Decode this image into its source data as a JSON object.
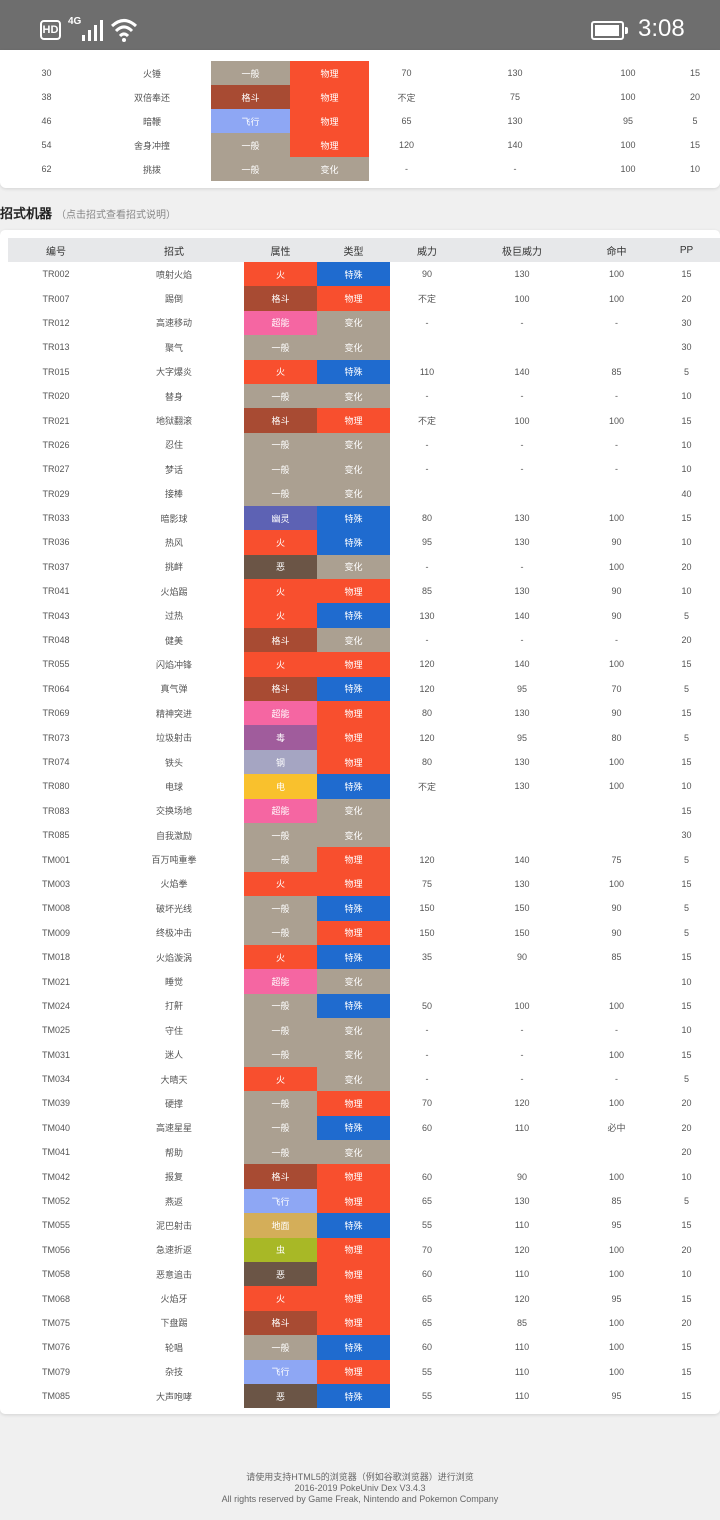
{
  "status_bar": {
    "network_hd": "HD",
    "network_type": "4G",
    "time": "3:08"
  },
  "type_colors": {
    "一般": "#aba091",
    "格斗": "#a84b33",
    "飞行": "#8ea7f4",
    "火": "#f84f2e",
    "超能": "#f566a2",
    "幽灵": "#5d62b4",
    "恶": "#6b5546",
    "毒": "#a05c9c",
    "钢": "#a5a5c2",
    "电": "#f9c12d",
    "地面": "#d4ae59",
    "虫": "#a8b826",
    "物理": "#f84f2e",
    "特殊": "#1f6bcf",
    "变化": "#aba091"
  },
  "level_moves": [
    [
      "30",
      "火锤",
      "一般",
      "物理",
      "70",
      "130",
      "100",
      "15"
    ],
    [
      "38",
      "双倍奉还",
      "格斗",
      "物理",
      "不定",
      "75",
      "100",
      "20"
    ],
    [
      "46",
      "暗鞭",
      "飞行",
      "物理",
      "65",
      "130",
      "95",
      "5"
    ],
    [
      "54",
      "舍身冲撞",
      "一般",
      "物理",
      "120",
      "140",
      "100",
      "15"
    ],
    [
      "62",
      "挑拨",
      "一般",
      "变化",
      "-",
      "-",
      "100",
      "10"
    ]
  ],
  "tm_section": {
    "title": "招式机器",
    "subtitle": "（点击招式查看招式说明）"
  },
  "tm_headers": [
    "编号",
    "招式",
    "属性",
    "类型",
    "威力",
    "极巨威力",
    "命中",
    "PP"
  ],
  "tm_moves": [
    [
      "TR002",
      "喷射火焰",
      "火",
      "特殊",
      "90",
      "130",
      "100",
      "15"
    ],
    [
      "TR007",
      "踢倒",
      "格斗",
      "物理",
      "不定",
      "100",
      "100",
      "20"
    ],
    [
      "TR012",
      "高速移动",
      "超能",
      "变化",
      "-",
      "-",
      "-",
      "30"
    ],
    [
      "TR013",
      "聚气",
      "一般",
      "变化",
      "",
      "",
      "",
      "30"
    ],
    [
      "TR015",
      "大字爆炎",
      "火",
      "特殊",
      "110",
      "140",
      "85",
      "5"
    ],
    [
      "TR020",
      "替身",
      "一般",
      "变化",
      "-",
      "-",
      "-",
      "10"
    ],
    [
      "TR021",
      "地狱翻滚",
      "格斗",
      "物理",
      "不定",
      "100",
      "100",
      "15"
    ],
    [
      "TR026",
      "忍住",
      "一般",
      "变化",
      "-",
      "-",
      "-",
      "10"
    ],
    [
      "TR027",
      "梦话",
      "一般",
      "变化",
      "-",
      "-",
      "-",
      "10"
    ],
    [
      "TR029",
      "接棒",
      "一般",
      "变化",
      "",
      "",
      "",
      "40"
    ],
    [
      "TR033",
      "暗影球",
      "幽灵",
      "特殊",
      "80",
      "130",
      "100",
      "15"
    ],
    [
      "TR036",
      "热风",
      "火",
      "特殊",
      "95",
      "130",
      "90",
      "10"
    ],
    [
      "TR037",
      "挑衅",
      "恶",
      "变化",
      "-",
      "-",
      "100",
      "20"
    ],
    [
      "TR041",
      "火焰踢",
      "火",
      "物理",
      "85",
      "130",
      "90",
      "10"
    ],
    [
      "TR043",
      "过热",
      "火",
      "特殊",
      "130",
      "140",
      "90",
      "5"
    ],
    [
      "TR048",
      "健美",
      "格斗",
      "变化",
      "-",
      "-",
      "-",
      "20"
    ],
    [
      "TR055",
      "闪焰冲锋",
      "火",
      "物理",
      "120",
      "140",
      "100",
      "15"
    ],
    [
      "TR064",
      "真气弹",
      "格斗",
      "特殊",
      "120",
      "95",
      "70",
      "5"
    ],
    [
      "TR069",
      "精神突进",
      "超能",
      "物理",
      "80",
      "130",
      "90",
      "15"
    ],
    [
      "TR073",
      "垃圾射击",
      "毒",
      "物理",
      "120",
      "95",
      "80",
      "5"
    ],
    [
      "TR074",
      "铁头",
      "钢",
      "物理",
      "80",
      "130",
      "100",
      "15"
    ],
    [
      "TR080",
      "电球",
      "电",
      "特殊",
      "不定",
      "130",
      "100",
      "10"
    ],
    [
      "TR083",
      "交换场地",
      "超能",
      "变化",
      "",
      "",
      "",
      "15"
    ],
    [
      "TR085",
      "自我激励",
      "一般",
      "变化",
      "",
      "",
      "",
      "30"
    ],
    [
      "TM001",
      "百万吨重拳",
      "一般",
      "物理",
      "120",
      "140",
      "75",
      "5"
    ],
    [
      "TM003",
      "火焰拳",
      "火",
      "物理",
      "75",
      "130",
      "100",
      "15"
    ],
    [
      "TM008",
      "破坏光线",
      "一般",
      "特殊",
      "150",
      "150",
      "90",
      "5"
    ],
    [
      "TM009",
      "终极冲击",
      "一般",
      "物理",
      "150",
      "150",
      "90",
      "5"
    ],
    [
      "TM018",
      "火焰漩涡",
      "火",
      "特殊",
      "35",
      "90",
      "85",
      "15"
    ],
    [
      "TM021",
      "睡觉",
      "超能",
      "变化",
      "",
      "",
      "",
      "10"
    ],
    [
      "TM024",
      "打鼾",
      "一般",
      "特殊",
      "50",
      "100",
      "100",
      "15"
    ],
    [
      "TM025",
      "守住",
      "一般",
      "变化",
      "-",
      "-",
      "-",
      "10"
    ],
    [
      "TM031",
      "迷人",
      "一般",
      "变化",
      "-",
      "-",
      "100",
      "15"
    ],
    [
      "TM034",
      "大晴天",
      "火",
      "变化",
      "-",
      "-",
      "-",
      "5"
    ],
    [
      "TM039",
      "硬撑",
      "一般",
      "物理",
      "70",
      "120",
      "100",
      "20"
    ],
    [
      "TM040",
      "高速星星",
      "一般",
      "特殊",
      "60",
      "110",
      "必中",
      "20"
    ],
    [
      "TM041",
      "帮助",
      "一般",
      "变化",
      "",
      "",
      "",
      "20"
    ],
    [
      "TM042",
      "报复",
      "格斗",
      "物理",
      "60",
      "90",
      "100",
      "10"
    ],
    [
      "TM052",
      "燕返",
      "飞行",
      "物理",
      "65",
      "130",
      "85",
      "5"
    ],
    [
      "TM055",
      "泥巴射击",
      "地面",
      "特殊",
      "55",
      "110",
      "95",
      "15"
    ],
    [
      "TM056",
      "急速折返",
      "虫",
      "物理",
      "70",
      "120",
      "100",
      "20"
    ],
    [
      "TM058",
      "恶意追击",
      "恶",
      "物理",
      "60",
      "110",
      "100",
      "10"
    ],
    [
      "TM068",
      "火焰牙",
      "火",
      "物理",
      "65",
      "120",
      "95",
      "15"
    ],
    [
      "TM075",
      "下盘踢",
      "格斗",
      "物理",
      "65",
      "85",
      "100",
      "20"
    ],
    [
      "TM076",
      "轮唱",
      "一般",
      "特殊",
      "60",
      "110",
      "100",
      "15"
    ],
    [
      "TM079",
      "杂技",
      "飞行",
      "物理",
      "55",
      "110",
      "100",
      "15"
    ],
    [
      "TM085",
      "大声咆哮",
      "恶",
      "特殊",
      "55",
      "110",
      "95",
      "15"
    ]
  ],
  "footer": {
    "line1": "请使用支持HTML5的浏览器（例如谷歌浏览器）进行浏览",
    "line2": "2016-2019 PokeUniv Dex V3.4.3",
    "line3": "All rights reserved by Game Freak, Nintendo and Pokemon Company"
  }
}
